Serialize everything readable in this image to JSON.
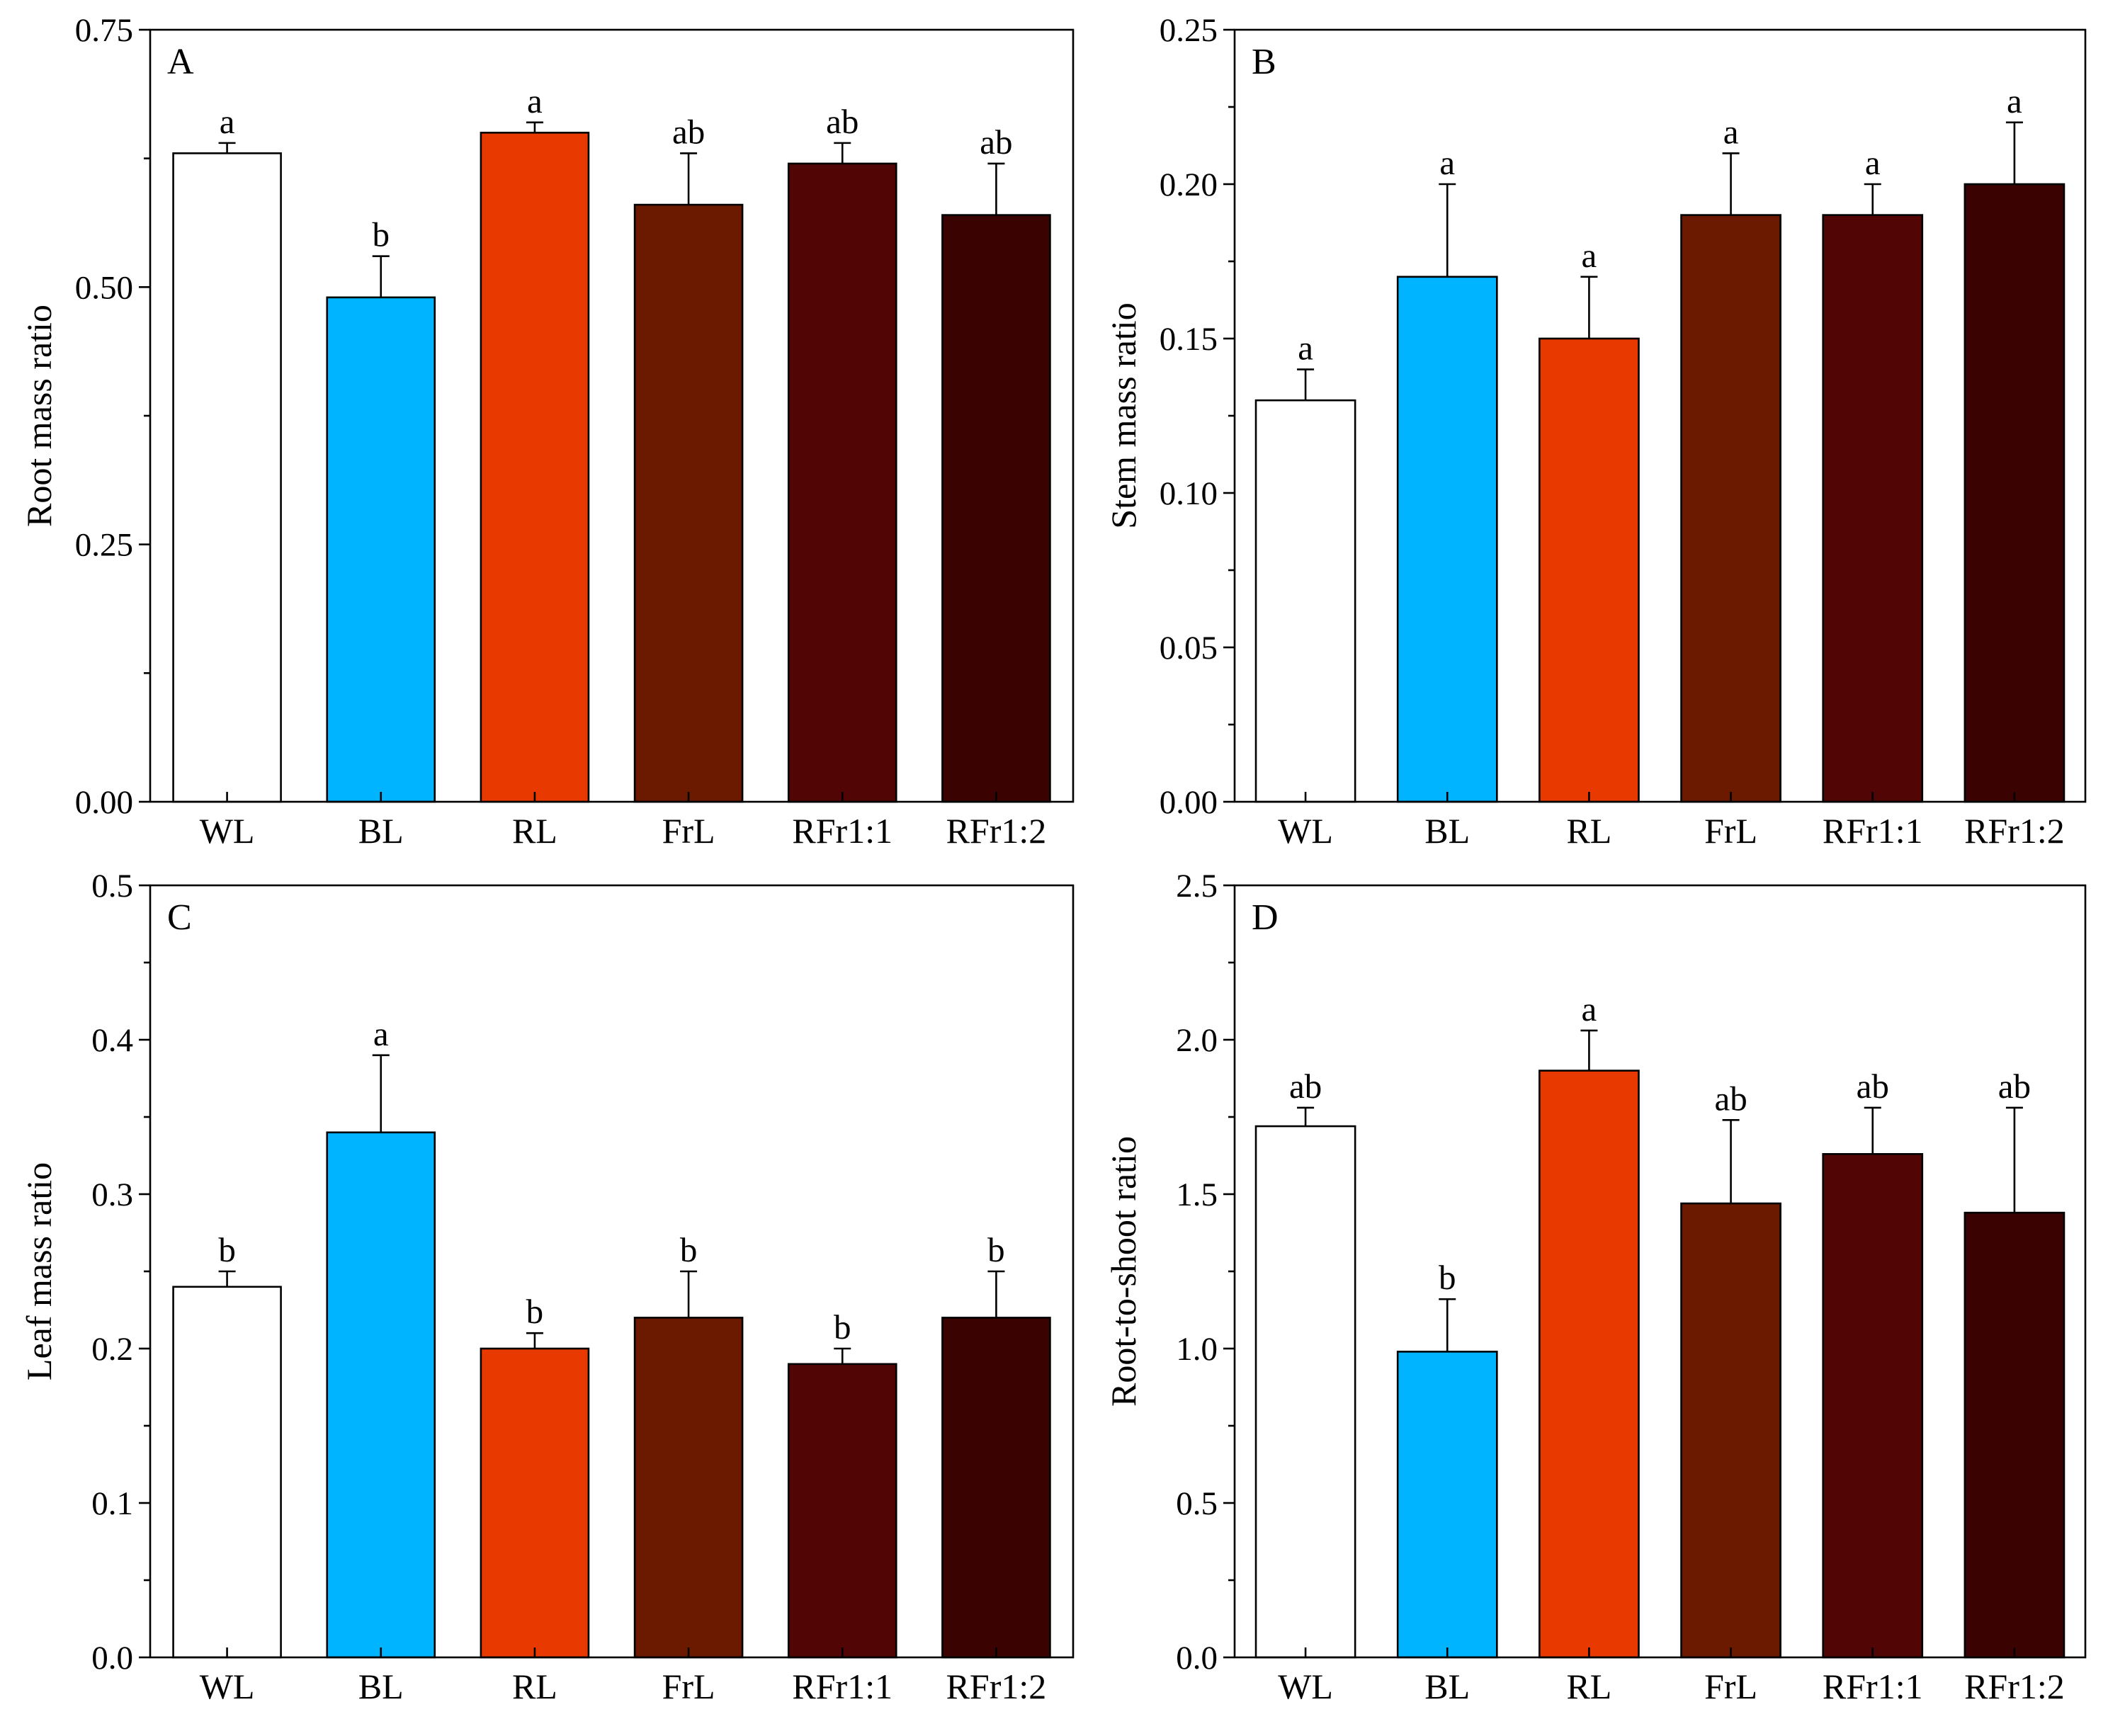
{
  "colors": {
    "WL": "#ffffff",
    "BL": "#00b4ff",
    "RL": "#e83a00",
    "FrL": "#6b1a00",
    "RFr1:1": "#520505",
    "RFr1:2": "#3b0202",
    "axis": "#000000"
  },
  "chart_data": [
    {
      "type": "bar",
      "panel": "A",
      "categories": [
        "WL",
        "BL",
        "RL",
        "FrL",
        "RFr1:1",
        "RFr1:2"
      ],
      "values": [
        0.63,
        0.49,
        0.65,
        0.58,
        0.62,
        0.57
      ],
      "errors": [
        0.01,
        0.04,
        0.01,
        0.05,
        0.02,
        0.05
      ],
      "significance": [
        "a",
        "b",
        "a",
        "ab",
        "ab",
        "ab"
      ],
      "ylabel": "Root mass ratio",
      "ylim": [
        0,
        0.75
      ],
      "yticks": [
        0,
        0.25,
        0.5,
        0.75
      ],
      "ytick_labels": [
        "0.00",
        "0.25",
        "0.50",
        "0.75"
      ]
    },
    {
      "type": "bar",
      "panel": "B",
      "categories": [
        "WL",
        "BL",
        "RL",
        "FrL",
        "RFr1:1",
        "RFr1:2"
      ],
      "values": [
        0.13,
        0.17,
        0.15,
        0.19,
        0.19,
        0.2
      ],
      "errors": [
        0.01,
        0.03,
        0.02,
        0.02,
        0.01,
        0.02
      ],
      "significance": [
        "a",
        "a",
        "a",
        "a",
        "a",
        "a"
      ],
      "ylabel": "Stem mass ratio",
      "ylim": [
        0,
        0.25
      ],
      "yticks": [
        0,
        0.05,
        0.1,
        0.15,
        0.2,
        0.25
      ],
      "ytick_labels": [
        "0.00",
        "0.05",
        "0.10",
        "0.15",
        "0.20",
        "0.25"
      ]
    },
    {
      "type": "bar",
      "panel": "C",
      "categories": [
        "WL",
        "BL",
        "RL",
        "FrL",
        "RFr1:1",
        "RFr1:2"
      ],
      "values": [
        0.24,
        0.34,
        0.2,
        0.22,
        0.19,
        0.22
      ],
      "errors": [
        0.01,
        0.05,
        0.01,
        0.03,
        0.01,
        0.03
      ],
      "significance": [
        "b",
        "a",
        "b",
        "b",
        "b",
        "b"
      ],
      "ylabel": "Leaf mass ratio",
      "ylim": [
        0,
        0.5
      ],
      "yticks": [
        0,
        0.1,
        0.2,
        0.3,
        0.4,
        0.5
      ],
      "ytick_labels": [
        "0.0",
        "0.1",
        "0.2",
        "0.3",
        "0.4",
        "0.5"
      ]
    },
    {
      "type": "bar",
      "panel": "D",
      "categories": [
        "WL",
        "BL",
        "RL",
        "FrL",
        "RFr1:1",
        "RFr1:2"
      ],
      "values": [
        1.72,
        0.99,
        1.9,
        1.47,
        1.63,
        1.44
      ],
      "errors": [
        0.06,
        0.17,
        0.13,
        0.27,
        0.15,
        0.34
      ],
      "significance": [
        "ab",
        "b",
        "a",
        "ab",
        "ab",
        "ab"
      ],
      "ylabel": "Root-to-shoot ratio",
      "ylim": [
        0,
        2.5
      ],
      "yticks": [
        0,
        0.5,
        1.0,
        1.5,
        2.0,
        2.5
      ],
      "ytick_labels": [
        "0.0",
        "0.5",
        "1.0",
        "1.5",
        "2.0",
        "2.5"
      ]
    }
  ]
}
